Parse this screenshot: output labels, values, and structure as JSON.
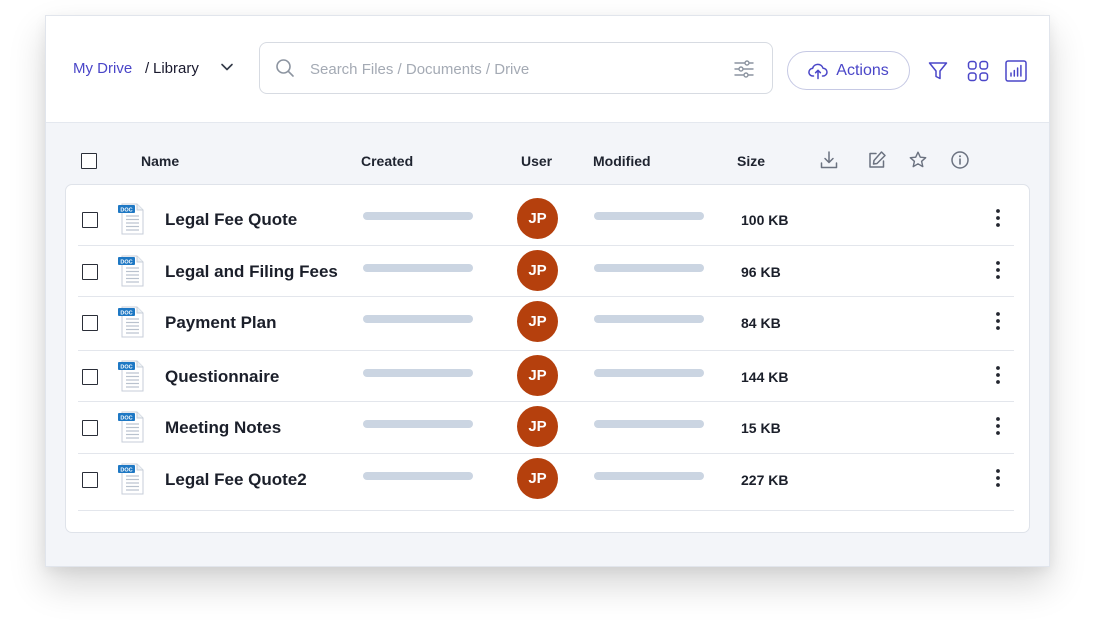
{
  "breadcrumb": {
    "root": "My Drive",
    "separator": "/",
    "current": "Library"
  },
  "search": {
    "placeholder": "Search Files / Documents / Drive",
    "value": ""
  },
  "toolbar": {
    "actions_label": "Actions"
  },
  "table": {
    "columns": {
      "name": "Name",
      "created": "Created",
      "user": "User",
      "modified": "Modified",
      "size": "Size"
    },
    "rows": [
      {
        "name": "Legal Fee Quote",
        "user": "JP",
        "size": "100 KB"
      },
      {
        "name": "Legal and Filing Fees",
        "user": "JP",
        "size": "96 KB"
      },
      {
        "name": "Payment Plan",
        "user": "JP",
        "size": "84 KB"
      },
      {
        "name": "Questionnaire",
        "user": "JP",
        "size": "144 KB"
      },
      {
        "name": "Meeting Notes",
        "user": "JP",
        "size": "15 KB"
      },
      {
        "name": "Legal Fee Quote2",
        "user": "JP",
        "size": "227 KB"
      }
    ]
  },
  "file_icon": {
    "label": "DOC",
    "name": "doc-file-icon"
  },
  "colors": {
    "accent": "#4a46c8",
    "avatar": "#b5400d",
    "placeholder_bar": "#cbd5e2",
    "doc_badge": "#1e78c4"
  }
}
